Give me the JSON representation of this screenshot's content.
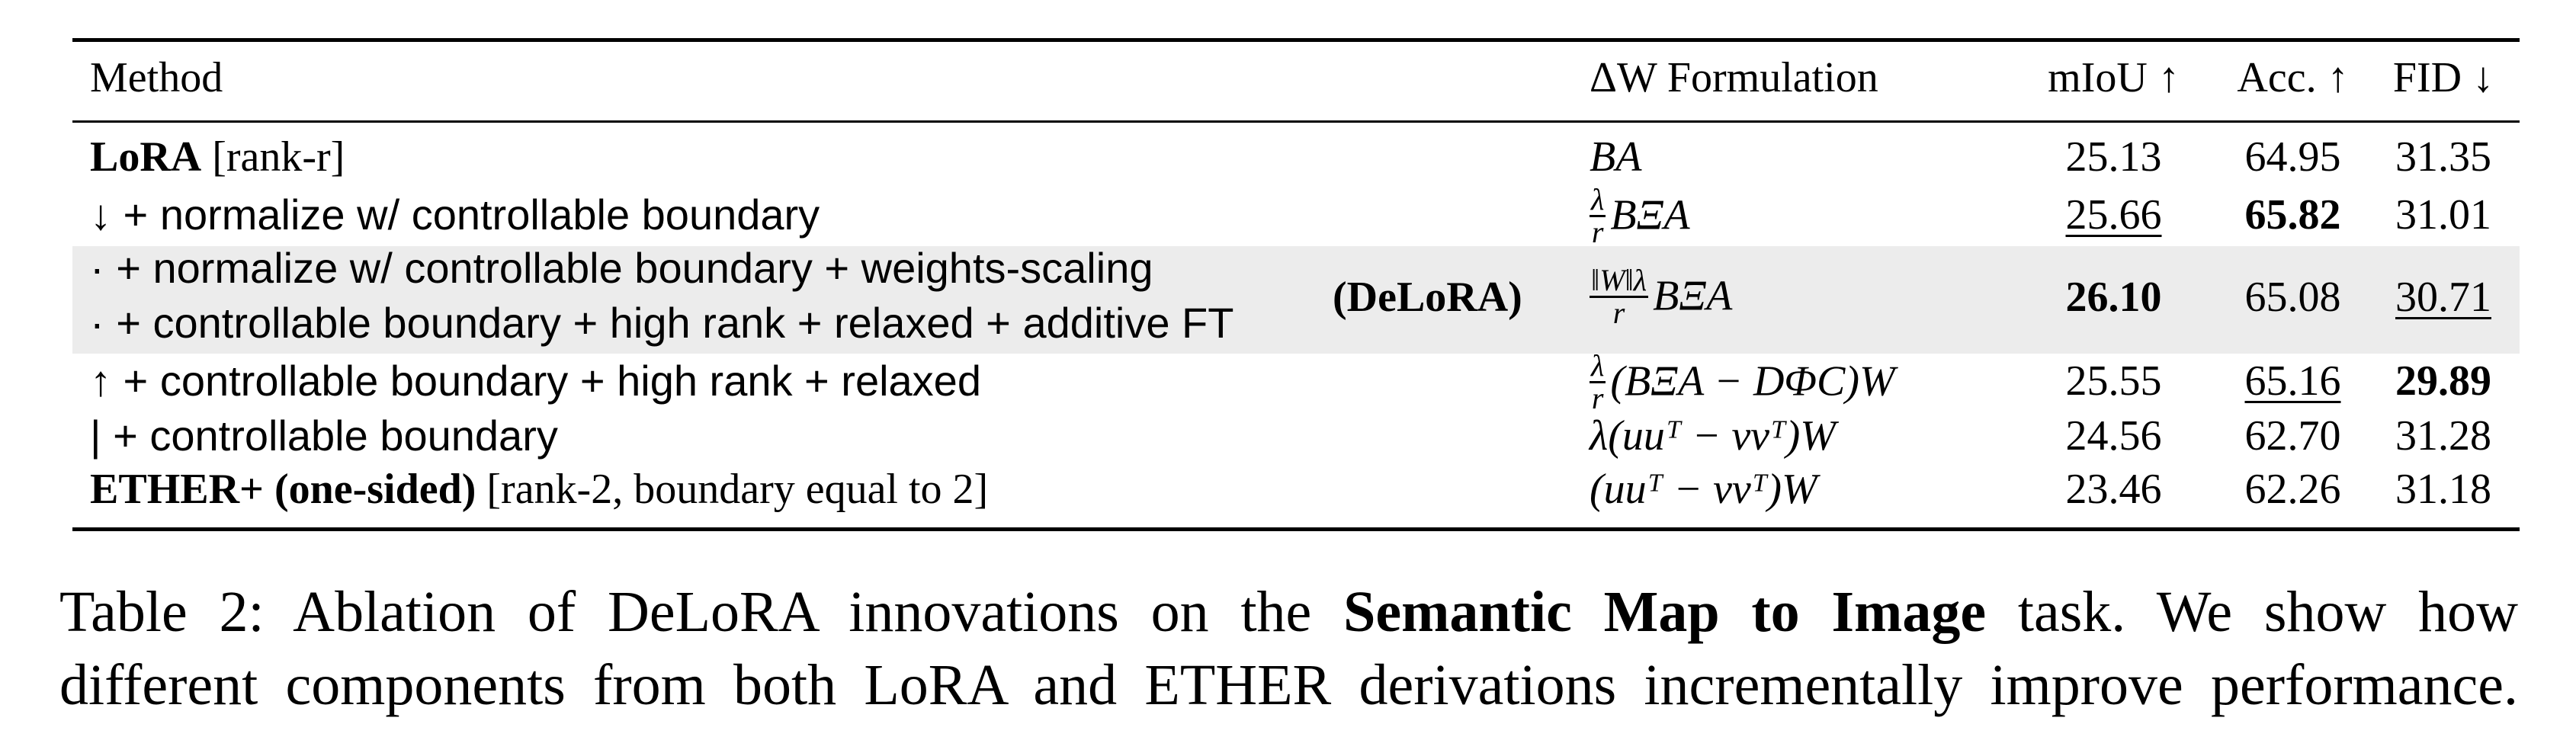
{
  "table": {
    "headers": {
      "method": "Method",
      "formulation": "ΔW Formulation",
      "miou": "mIoU ↑",
      "acc": "Acc. ↑",
      "fid": "FID ↓"
    },
    "rows": [
      {
        "method_bold": "LoRA",
        "method_rest": " [rank-r]",
        "formula": "BA",
        "miou": "25.13",
        "acc": "64.95",
        "fid": "31.35"
      },
      {
        "method_rest": "↓ + normalize w/ controllable boundary",
        "formula_frac_num": "λ",
        "formula_frac_den": "r",
        "formula": "BΞA",
        "miou": "25.66",
        "acc": "65.82",
        "fid": "31.01"
      },
      {
        "method_line1": "· + normalize w/ controllable boundary + weights-scaling",
        "method_line2": "· + controllable boundary + high rank + relaxed + additive FT",
        "method_tag": "(DeLoRA)",
        "formula_frac_num": "‖W‖λ",
        "formula_frac_den": "r",
        "formula": "BΞA",
        "miou": "26.10",
        "acc": "65.08",
        "fid": "30.71"
      },
      {
        "method_rest": "↑ + controllable boundary + high rank + relaxed",
        "formula_frac_num": "λ",
        "formula_frac_den": "r",
        "formula": "(BΞA − DΦC)W",
        "miou": "25.55",
        "acc": "65.16",
        "fid": "29.89"
      },
      {
        "method_rest": "| + controllable boundary",
        "formula": "λ(uuᵀ − vvᵀ)W",
        "miou": "24.56",
        "acc": "62.70",
        "fid": "31.28"
      },
      {
        "method_bold": "ETHER+ (one-sided)",
        "method_rest": " [rank-2, boundary equal to 2]",
        "formula": "(uuᵀ − vvᵀ)W",
        "miou": "23.46",
        "acc": "62.26",
        "fid": "31.18"
      }
    ]
  },
  "caption": {
    "prefix": "Table 2:  Ablation of DeLoRA innovations on the ",
    "bold": "Semantic Map to Image",
    "suffix_line1": " task.  We show how",
    "line2": "different components from both LoRA and ETHER derivations incrementally improve performance."
  }
}
